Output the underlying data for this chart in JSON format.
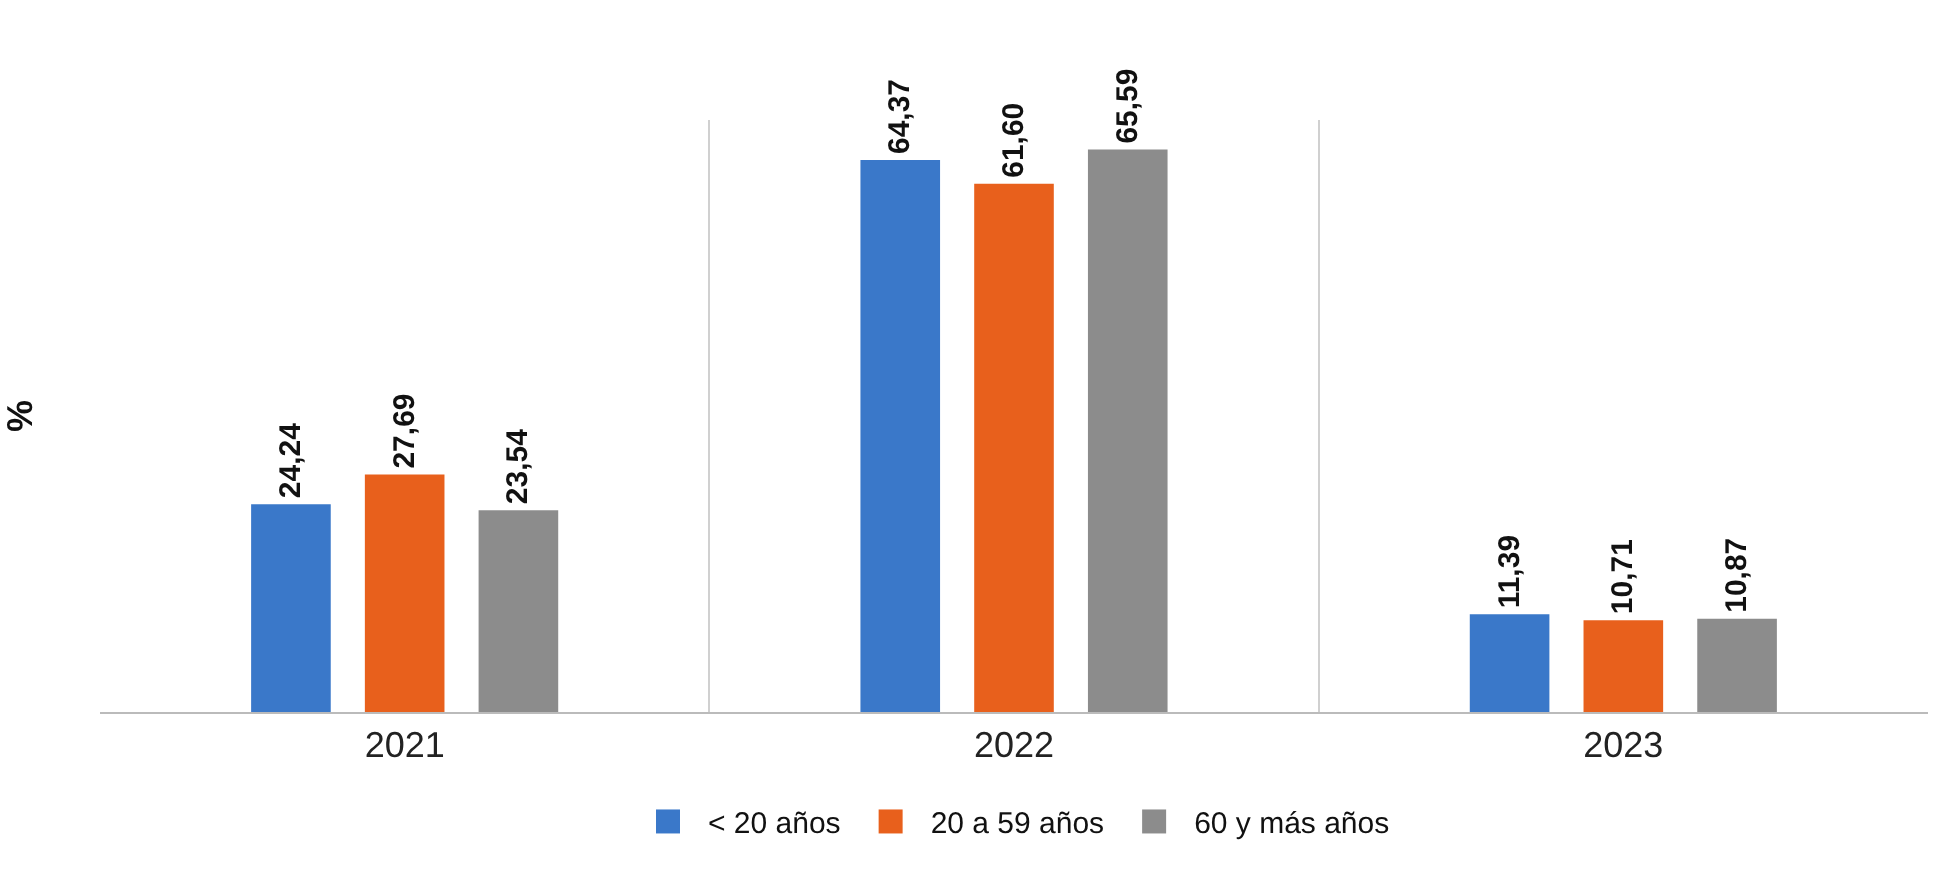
{
  "chart_data": {
    "type": "bar",
    "ylabel": "%",
    "categories": [
      "2021",
      "2022",
      "2023"
    ],
    "series": [
      {
        "name": "< 20 años",
        "color": "#3a78c9",
        "values": [
          24.24,
          64.37,
          11.39
        ],
        "value_labels": [
          "24,24",
          "64,37",
          "11,39"
        ]
      },
      {
        "name": "20 a 59 años",
        "color": "#e8601c",
        "values": [
          27.69,
          61.6,
          10.71
        ],
        "value_labels": [
          "27,69",
          "61,60",
          "10,71"
        ]
      },
      {
        "name": "60 y más años",
        "color": "#8c8c8c",
        "values": [
          23.54,
          65.59,
          10.87
        ],
        "value_labels": [
          "23,54",
          "65,59",
          "10,87"
        ]
      }
    ],
    "grid": "x",
    "legend": "bottom",
    "tick_labels": "x"
  }
}
